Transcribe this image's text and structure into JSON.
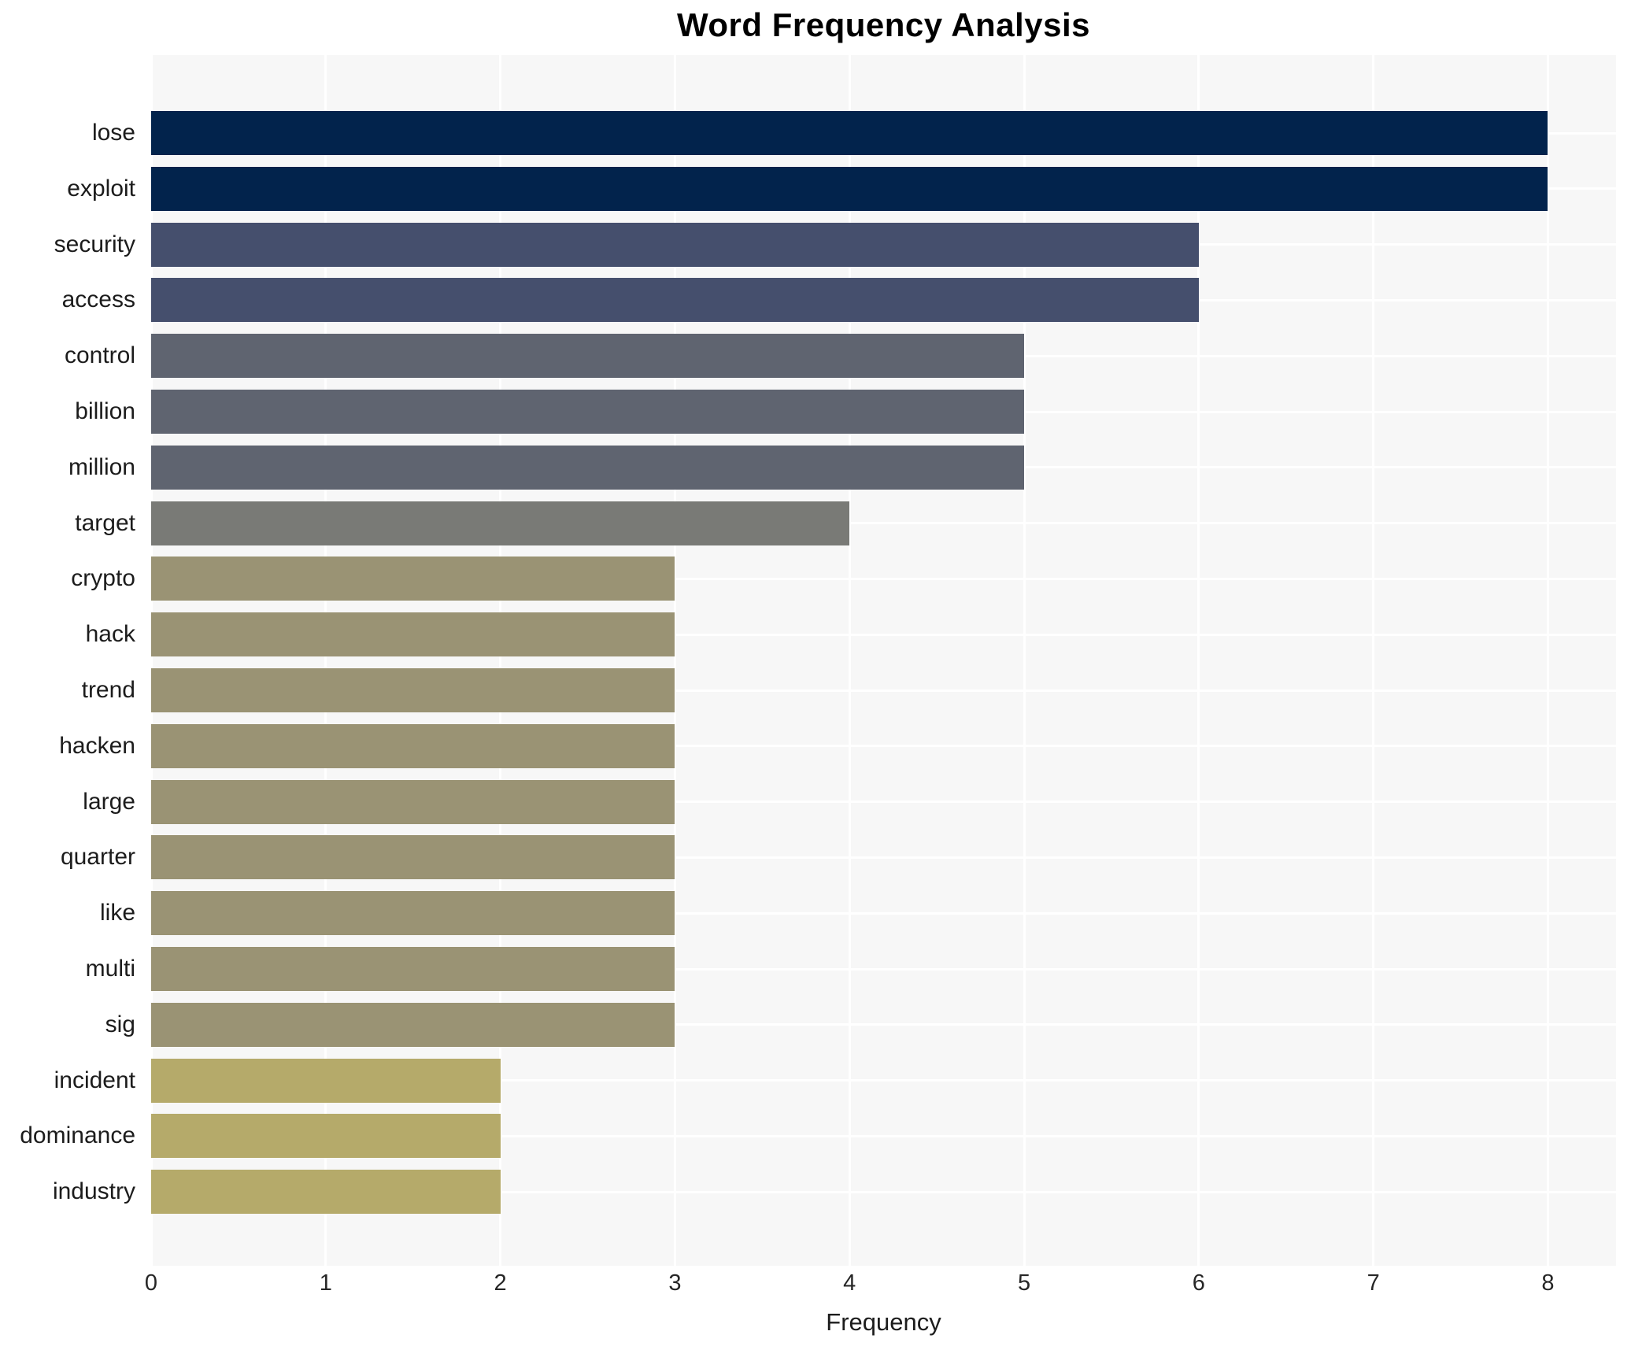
{
  "title": "Word Frequency Analysis",
  "xlabel": "Frequency",
  "colors": {
    "plot_background": "#f7f7f7",
    "page_background": "#ffffff",
    "grid_line": "#ffffff",
    "text": "#1c1c1c",
    "freq_8": "#02234c",
    "freq_6": "#454f6d",
    "freq_5": "#5f6470",
    "freq_4": "#797a76",
    "freq_3": "#9a9374",
    "freq_2": "#b5aa6a"
  },
  "chart_data": {
    "type": "bar",
    "orientation": "horizontal",
    "title": "Word Frequency Analysis",
    "xlabel": "Frequency",
    "ylabel": "",
    "grid": true,
    "legend": false,
    "xlim": [
      0,
      8.39
    ],
    "xticks": [
      0,
      1,
      2,
      3,
      4,
      5,
      6,
      7,
      8
    ],
    "categories": [
      "lose",
      "exploit",
      "security",
      "access",
      "control",
      "billion",
      "million",
      "target",
      "crypto",
      "hack",
      "trend",
      "hacken",
      "large",
      "quarter",
      "like",
      "multi",
      "sig",
      "incident",
      "dominance",
      "industry"
    ],
    "values": [
      8,
      8,
      6,
      6,
      5,
      5,
      5,
      4,
      3,
      3,
      3,
      3,
      3,
      3,
      3,
      3,
      3,
      2,
      2,
      2
    ],
    "bar_colors": [
      "#02234c",
      "#02234c",
      "#454f6d",
      "#454f6d",
      "#5f6470",
      "#5f6470",
      "#5f6470",
      "#797a76",
      "#9a9374",
      "#9a9374",
      "#9a9374",
      "#9a9374",
      "#9a9374",
      "#9a9374",
      "#9a9374",
      "#9a9374",
      "#9a9374",
      "#b5aa6a",
      "#b5aa6a",
      "#b5aa6a"
    ]
  }
}
